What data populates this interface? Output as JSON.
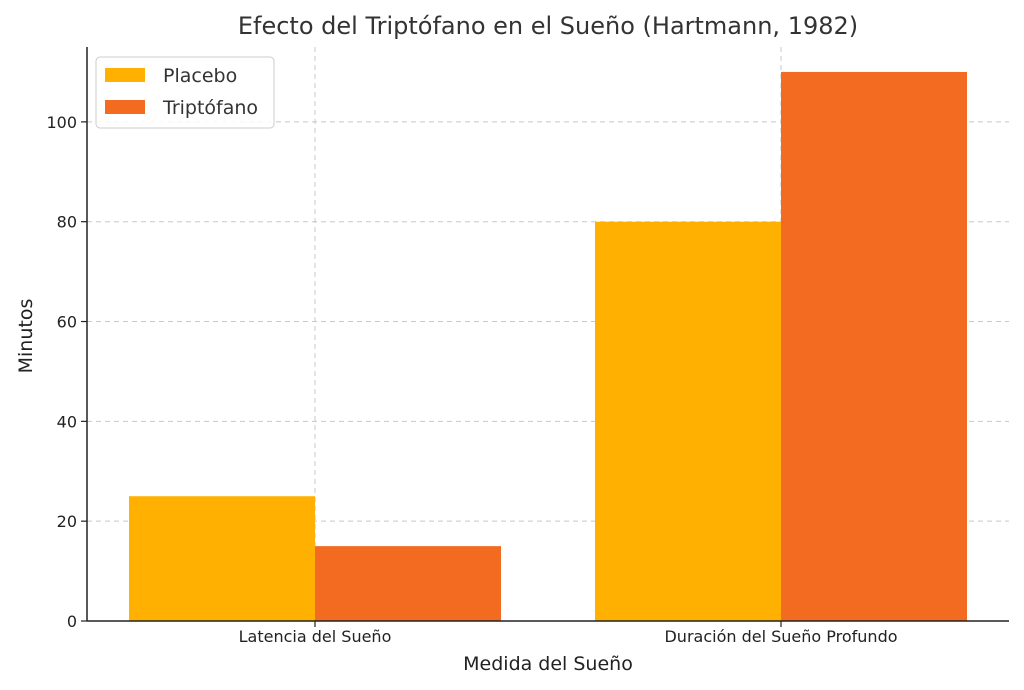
{
  "chart_data": {
    "type": "bar",
    "title": "Efecto del Triptófano en el Sueño (Hartmann, 1982)",
    "xlabel": "Medida del Sueño",
    "ylabel": "Minutos",
    "categories": [
      "Latencia del Sueño",
      "Duración del Sueño Profundo"
    ],
    "series": [
      {
        "name": "Placebo",
        "values": [
          25,
          80
        ],
        "color": "#FFB000"
      },
      {
        "name": "Triptófano",
        "values": [
          15,
          110
        ],
        "color": "#F26B21"
      }
    ],
    "ylim": [
      0,
      115
    ],
    "yticks": [
      0,
      20,
      40,
      60,
      80,
      100
    ],
    "grid": true,
    "legend_position": "top-left"
  }
}
